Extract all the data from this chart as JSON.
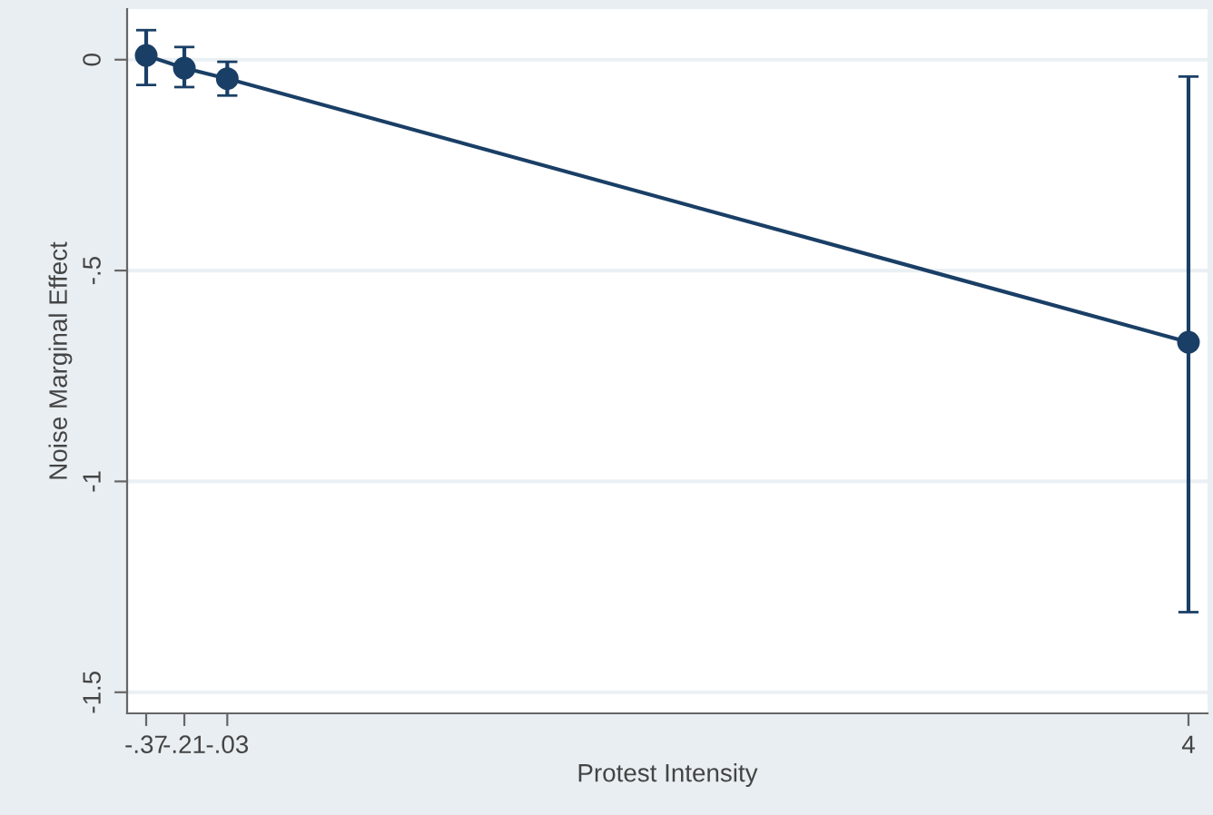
{
  "chart_data": {
    "type": "line",
    "xlabel": "Protest Intensity",
    "ylabel": "Noise Marginal Effect",
    "x": [
      -0.37,
      -0.21,
      -0.03,
      4
    ],
    "series": [
      {
        "color": "#1a3f66",
        "values": [
          0.01,
          -0.02,
          -0.045,
          -0.67
        ],
        "errors": [
          [
            -0.06,
            0.07
          ],
          [
            -0.065,
            0.03
          ],
          [
            -0.085,
            -0.005
          ],
          [
            -1.31,
            -0.04
          ]
        ]
      }
    ],
    "xlim": [
      -0.45,
      4.08
    ],
    "ylim": [
      -1.55,
      0.12
    ],
    "xticks": [
      {
        "value": -0.37,
        "label": "-.37"
      },
      {
        "value": -0.21,
        "label": "-.21"
      },
      {
        "value": -0.03,
        "label": "-.03"
      },
      4
    ],
    "yticks": [
      {
        "value": -1.5,
        "label": "-1.5"
      },
      -1,
      {
        "value": -0.5,
        "label": "-.5"
      },
      0
    ],
    "grid": "y",
    "marker": "circle",
    "line_style": "solid",
    "legend": false
  }
}
